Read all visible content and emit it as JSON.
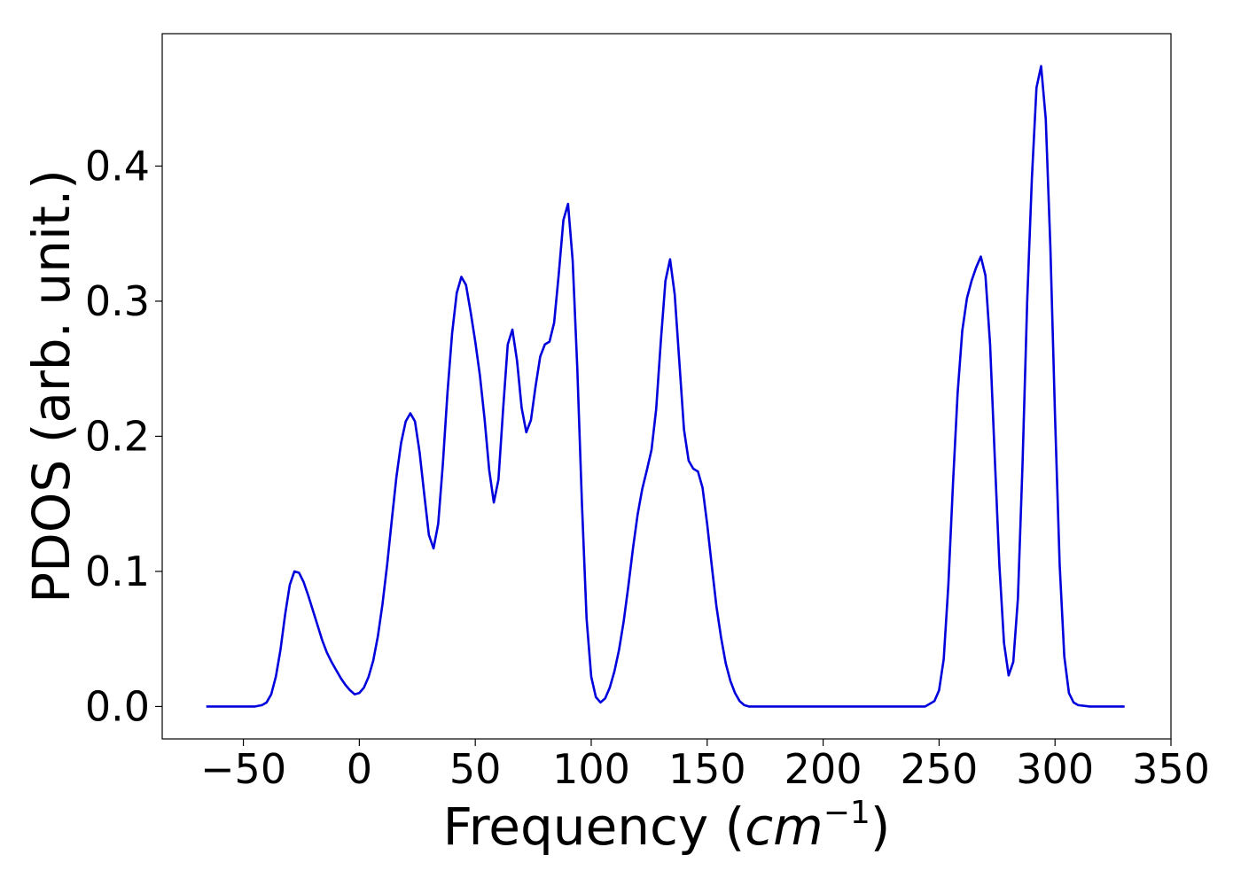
{
  "chart_data": {
    "type": "line",
    "xlabel": "Frequency (",
    "xlabel_math": "cm",
    "xlabel_sup": "−1",
    "xlabel_end": ")",
    "ylabel": "PDOS (arb. unit.)",
    "xlim": [
      -85,
      350
    ],
    "ylim": [
      -0.024,
      0.498
    ],
    "x_ticks": [
      -50,
      0,
      50,
      100,
      150,
      200,
      250,
      300,
      350
    ],
    "x_tick_labels": [
      "−50",
      "0",
      "50",
      "100",
      "150",
      "200",
      "250",
      "300",
      "350"
    ],
    "y_ticks": [
      0.0,
      0.1,
      0.2,
      0.3,
      0.4
    ],
    "y_tick_labels": [
      "0.0",
      "0.1",
      "0.2",
      "0.3",
      "0.4"
    ],
    "grid": false,
    "line_color": "#0000dd",
    "series": [
      {
        "x": [
          -66,
          -60,
          -50,
          -45,
          -42,
          -40,
          -38,
          -36,
          -34,
          -32,
          -30,
          -28,
          -26,
          -24,
          -22,
          -20,
          -18,
          -16,
          -14,
          -12,
          -10,
          -8,
          -6,
          -4,
          -2,
          0,
          2,
          4,
          6,
          8,
          10,
          12,
          14,
          16,
          18,
          20,
          22,
          24,
          26,
          28,
          30,
          32,
          34,
          36,
          38,
          40,
          42,
          44,
          46,
          48,
          50,
          52,
          54,
          56,
          58,
          60,
          62,
          64,
          66,
          68,
          70,
          72,
          74,
          76,
          78,
          80,
          82,
          84,
          86,
          88,
          90,
          92,
          94,
          96,
          98,
          100,
          102,
          104,
          106,
          108,
          110,
          112,
          114,
          116,
          118,
          120,
          122,
          124,
          126,
          128,
          130,
          132,
          134,
          136,
          138,
          140,
          142,
          144,
          146,
          148,
          150,
          152,
          154,
          156,
          158,
          160,
          162,
          164,
          166,
          168,
          170,
          175,
          180,
          200,
          220,
          240,
          244,
          246,
          248,
          250,
          252,
          254,
          256,
          258,
          260,
          262,
          264,
          266,
          268,
          270,
          272,
          274,
          276,
          278,
          280,
          282,
          284,
          286,
          288,
          290,
          292,
          294,
          296,
          298,
          300,
          302,
          304,
          306,
          308,
          310,
          315,
          320,
          330
        ],
        "y": [
          0,
          0,
          0,
          0,
          0.001,
          0.003,
          0.009,
          0.022,
          0.042,
          0.068,
          0.09,
          0.1,
          0.099,
          0.092,
          0.082,
          0.071,
          0.06,
          0.049,
          0.04,
          0.033,
          0.027,
          0.021,
          0.016,
          0.012,
          0.009,
          0.01,
          0.014,
          0.022,
          0.034,
          0.052,
          0.076,
          0.105,
          0.138,
          0.17,
          0.195,
          0.211,
          0.217,
          0.211,
          0.188,
          0.157,
          0.127,
          0.117,
          0.135,
          0.179,
          0.232,
          0.276,
          0.306,
          0.318,
          0.312,
          0.292,
          0.27,
          0.245,
          0.213,
          0.175,
          0.151,
          0.168,
          0.22,
          0.268,
          0.279,
          0.256,
          0.221,
          0.203,
          0.212,
          0.237,
          0.259,
          0.268,
          0.27,
          0.284,
          0.32,
          0.36,
          0.372,
          0.33,
          0.25,
          0.15,
          0.065,
          0.022,
          0.007,
          0.003,
          0.006,
          0.014,
          0.026,
          0.042,
          0.063,
          0.089,
          0.117,
          0.142,
          0.161,
          0.175,
          0.19,
          0.22,
          0.27,
          0.315,
          0.331,
          0.305,
          0.255,
          0.205,
          0.182,
          0.176,
          0.174,
          0.162,
          0.135,
          0.104,
          0.074,
          0.051,
          0.032,
          0.019,
          0.01,
          0.004,
          0.001,
          0,
          0,
          0,
          0,
          0,
          0,
          0,
          0,
          0.002,
          0.004,
          0.012,
          0.035,
          0.09,
          0.165,
          0.232,
          0.278,
          0.302,
          0.315,
          0.325,
          0.333,
          0.319,
          0.268,
          0.185,
          0.105,
          0.047,
          0.023,
          0.033,
          0.08,
          0.18,
          0.3,
          0.39,
          0.458,
          0.474,
          0.435,
          0.34,
          0.215,
          0.105,
          0.037,
          0.01,
          0.003,
          0.001,
          0,
          0,
          0
        ]
      }
    ]
  }
}
